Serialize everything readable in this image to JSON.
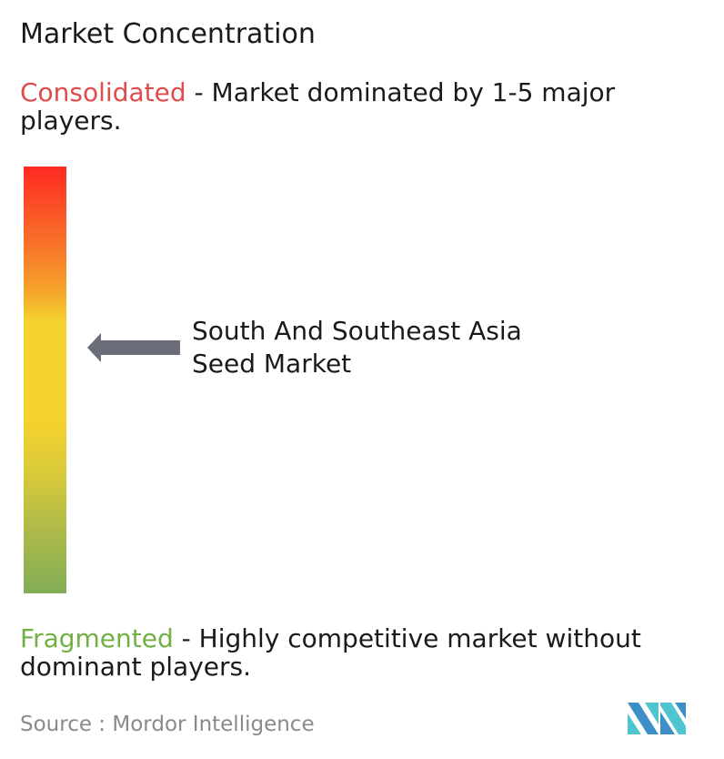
{
  "title": "Market Concentration",
  "consolidated": {
    "label": "Consolidated",
    "description": " - Market dominated by 1-5 major players.",
    "color": "#e04b4b"
  },
  "fragmented": {
    "label": "Fragmented",
    "description": " - Highly competitive market without dominant players.",
    "color": "#72b043"
  },
  "marker": {
    "label": "South And Southeast Asia Seed Market",
    "position_fraction_from_top": 0.42,
    "arrow_color": "#6b6e78"
  },
  "scale_colors": [
    "#ff2a22",
    "#f77a2a",
    "#f5d22e",
    "#a8b84a",
    "#82ad57"
  ],
  "source": {
    "label": "Source :",
    "value": "Mordor Intelligence"
  },
  "logo": {
    "text": "Mordor Intelligence",
    "colors": [
      "#3d8fc6",
      "#4fc6cf"
    ]
  }
}
